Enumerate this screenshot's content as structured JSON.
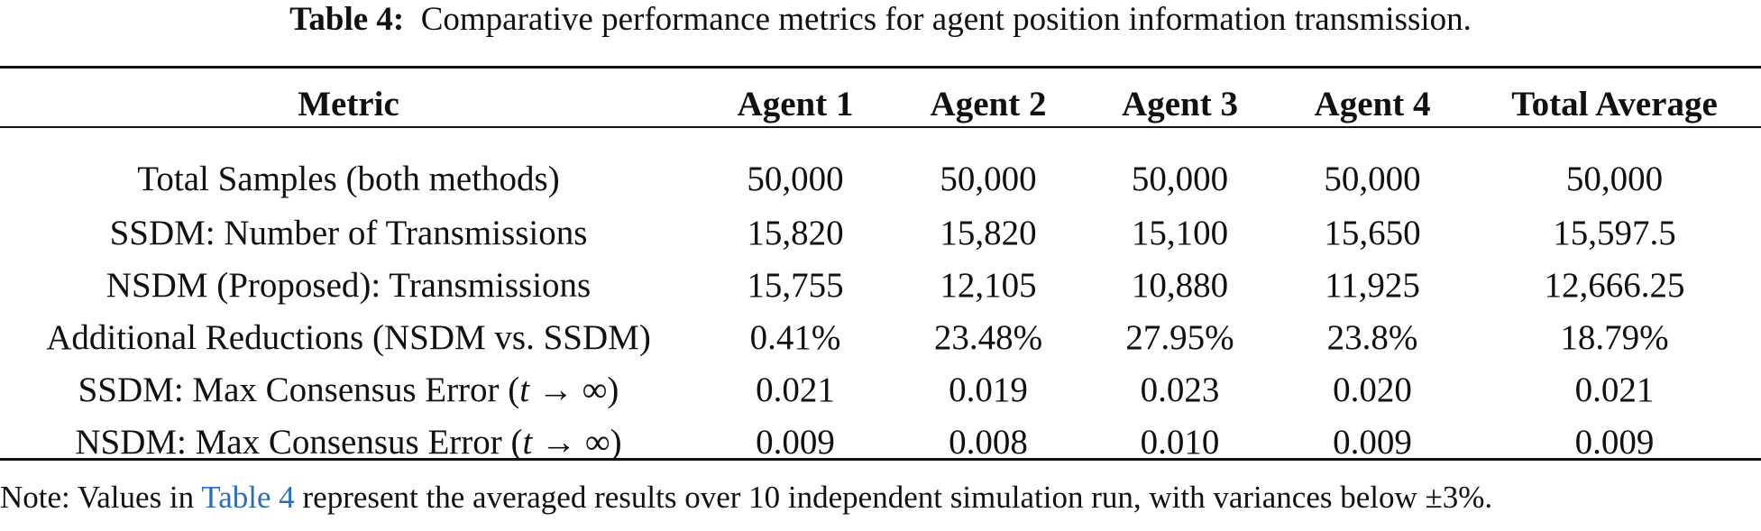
{
  "caption": {
    "label": "Table 4:",
    "text": "Comparative performance metrics for agent position information transmission."
  },
  "table": {
    "headers": [
      "Metric",
      "Agent 1",
      "Agent 2",
      "Agent 3",
      "Agent 4",
      "Total Average"
    ],
    "rows": [
      {
        "metric": "Total Samples (both methods)",
        "values": [
          "50,000",
          "50,000",
          "50,000",
          "50,000",
          "50,000"
        ]
      },
      {
        "metric": "SSDM: Number of Transmissions",
        "values": [
          "15,820",
          "15,820",
          "15,100",
          "15,650",
          "15,597.5"
        ]
      },
      {
        "metric": "NSDM (Proposed): Transmissions",
        "values": [
          "15,755",
          "12,105",
          "10,880",
          "11,925",
          "12,666.25"
        ]
      },
      {
        "metric": "Additional Reductions (NSDM vs. SSDM)",
        "values": [
          "0.41%",
          "23.48%",
          "27.95%",
          "23.8%",
          "18.79%"
        ]
      },
      {
        "metric_prefix": "SSDM: Max Consensus Error (",
        "metric_var": "t",
        "metric_suffix": " → ∞)",
        "values": [
          "0.021",
          "0.019",
          "0.023",
          "0.020",
          "0.021"
        ]
      },
      {
        "metric_prefix": "NSDM: Max Consensus Error (",
        "metric_var": "t",
        "metric_suffix": " → ∞)",
        "values": [
          "0.009",
          "0.008",
          "0.010",
          "0.009",
          "0.009"
        ]
      }
    ]
  },
  "note": {
    "prefix": "Note: Values in ",
    "link_text": "Table 4",
    "suffix": " represent the averaged results over 10 independent simulation run, with variances below ±3%."
  },
  "colors": {
    "text": "#111111",
    "link": "#2a6ebb",
    "background": "#ffffff"
  }
}
